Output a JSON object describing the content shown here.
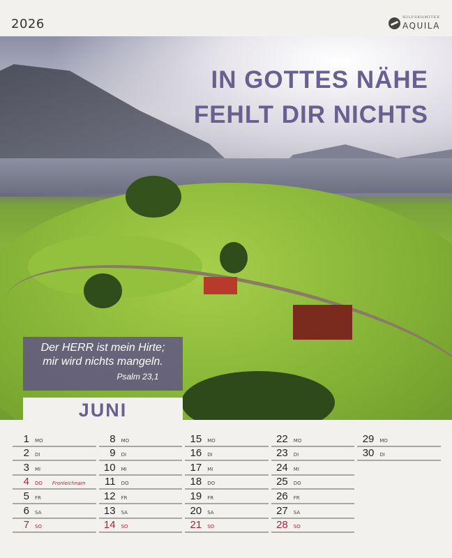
{
  "year": "2026",
  "logo": {
    "small": "HILFSKOMITEE",
    "name": "AQUILA"
  },
  "title": [
    "IN GOTTES NÄHE",
    "FEHLT DIR NICHTS"
  ],
  "verse": {
    "lines": [
      "Der HERR ist mein Hirte;",
      "mir wird nichts mangeln."
    ],
    "reference": "Psalm 23,1"
  },
  "month": "JUNI",
  "colors": {
    "accent": "#6a6090",
    "holiday": "#b0233a"
  },
  "days": [
    {
      "d": "1",
      "w": "MO"
    },
    {
      "d": "2",
      "w": "DI"
    },
    {
      "d": "3",
      "w": "MI"
    },
    {
      "d": "4",
      "w": "DO",
      "red": true,
      "note": "Fronleichnam"
    },
    {
      "d": "5",
      "w": "FR"
    },
    {
      "d": "6",
      "w": "SA"
    },
    {
      "d": "7",
      "w": "SO",
      "red": true
    },
    {
      "d": "8",
      "w": "MO"
    },
    {
      "d": "9",
      "w": "DI"
    },
    {
      "d": "10",
      "w": "MI"
    },
    {
      "d": "11",
      "w": "DO"
    },
    {
      "d": "12",
      "w": "FR"
    },
    {
      "d": "13",
      "w": "SA"
    },
    {
      "d": "14",
      "w": "SO",
      "red": true
    },
    {
      "d": "15",
      "w": "MO"
    },
    {
      "d": "16",
      "w": "DI"
    },
    {
      "d": "17",
      "w": "MI"
    },
    {
      "d": "18",
      "w": "DO"
    },
    {
      "d": "19",
      "w": "FR"
    },
    {
      "d": "20",
      "w": "SA"
    },
    {
      "d": "21",
      "w": "SO",
      "red": true
    },
    {
      "d": "22",
      "w": "MO"
    },
    {
      "d": "23",
      "w": "DI"
    },
    {
      "d": "24",
      "w": "MI"
    },
    {
      "d": "25",
      "w": "DO"
    },
    {
      "d": "26",
      "w": "FR"
    },
    {
      "d": "27",
      "w": "SA"
    },
    {
      "d": "28",
      "w": "SO",
      "red": true
    },
    {
      "d": "29",
      "w": "MO"
    },
    {
      "d": "30",
      "w": "DI"
    }
  ]
}
